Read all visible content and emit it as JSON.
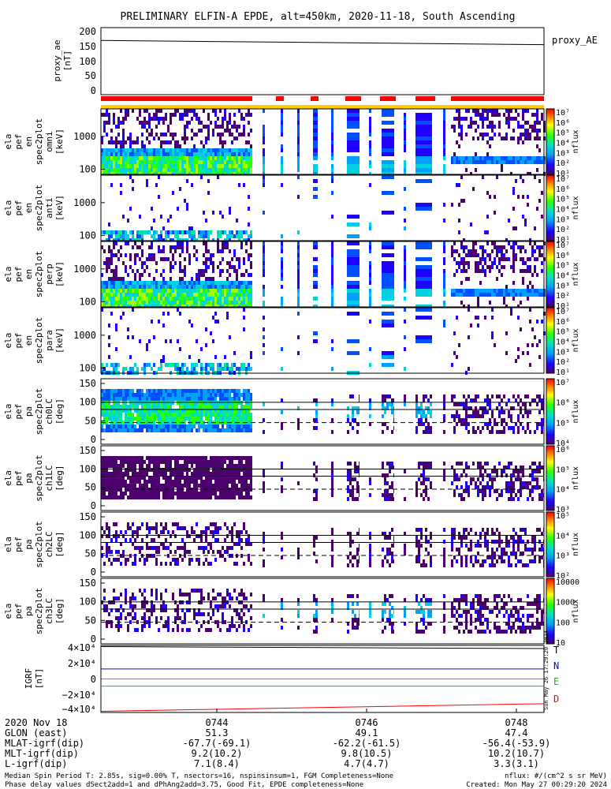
{
  "title": "PRELIMINARY ELFIN-A EPDE, alt=450km, 2020-11-18, South Ascending",
  "colors": {
    "bar_red": "#ff0000",
    "bar_yellow": "#ffcc00",
    "n_blue": "#0000ff",
    "e_green": "#00cc00",
    "d_red": "#ff0000"
  },
  "chart_data": [
    {
      "type": "line",
      "name": "proxy_ae",
      "ylabel": [
        "proxy_ae",
        "[nT]"
      ],
      "legend": "proxy_AE",
      "yticks": [
        "200",
        "150",
        "100",
        "50",
        "0"
      ],
      "ylim": [
        -10,
        210
      ],
      "x": [
        0,
        1
      ],
      "values": [
        168,
        154
      ]
    },
    {
      "type": "heatmap",
      "name": "ela_pef_en_spec2plot_omni",
      "ylabel": [
        "ela",
        "pef",
        "en",
        "spec2plot",
        "omni",
        "[keV]"
      ],
      "yticks": [
        "1000",
        "100"
      ],
      "colorbar_label": "nflux",
      "colorbar_ticks": [
        "10⁷",
        "10⁶",
        "10⁵",
        "10⁴",
        "10³",
        "10²",
        "10¹"
      ]
    },
    {
      "type": "heatmap",
      "name": "ela_pef_en_spec2plot_anti",
      "ylabel": [
        "ela",
        "pef",
        "en",
        "spec2plot",
        "anti",
        "[keV]"
      ],
      "yticks": [
        "1000",
        "100"
      ],
      "colorbar_label": "nflux",
      "colorbar_ticks": [
        "10⁷",
        "10⁶",
        "10⁵",
        "10⁴",
        "10³",
        "10²",
        "10¹"
      ]
    },
    {
      "type": "heatmap",
      "name": "ela_pef_en_spec2plot_perp",
      "ylabel": [
        "ela",
        "pef",
        "en",
        "spec2plot",
        "perp",
        "[keV]"
      ],
      "yticks": [
        "1000",
        "100"
      ],
      "colorbar_label": "nflux",
      "colorbar_ticks": [
        "10⁷",
        "10⁶",
        "10⁵",
        "10⁴",
        "10³",
        "10²",
        "10¹"
      ]
    },
    {
      "type": "heatmap",
      "name": "ela_pef_en_spec2plot_para",
      "ylabel": [
        "ela",
        "pef",
        "en",
        "spec2plot",
        "para",
        "[keV]"
      ],
      "yticks": [
        "1000",
        "100"
      ],
      "colorbar_label": "nflux",
      "colorbar_ticks": [
        "10⁷",
        "10⁶",
        "10⁵",
        "10⁴",
        "10³",
        "10²",
        "10¹"
      ]
    },
    {
      "type": "heatmap",
      "name": "ela_pef_pa_spec2plot_ch0LC",
      "ylabel": [
        "ela",
        "pef",
        "pa",
        "spec2plot",
        "ch0LC",
        "[deg]"
      ],
      "yticks": [
        "150",
        "100",
        "50",
        "0"
      ],
      "colorbar_label": "nflux",
      "colorbar_ticks": [
        "10⁷",
        "10⁶",
        "10⁵",
        "10⁴"
      ]
    },
    {
      "type": "heatmap",
      "name": "ela_pef_pa_spec2plot_ch1LC",
      "ylabel": [
        "ela",
        "pef",
        "pa",
        "spec2plot",
        "ch1LC",
        "[deg]"
      ],
      "yticks": [
        "150",
        "100",
        "50",
        "0"
      ],
      "colorbar_label": "nflux",
      "colorbar_ticks": [
        "10⁶",
        "10⁵",
        "10⁴",
        "10³"
      ]
    },
    {
      "type": "heatmap",
      "name": "ela_pef_pa_spec2plot_ch2LC",
      "ylabel": [
        "ela",
        "pef",
        "pa",
        "spec2plot",
        "ch2LC",
        "[deg]"
      ],
      "yticks": [
        "150",
        "100",
        "50",
        "0"
      ],
      "colorbar_label": "nflux",
      "colorbar_ticks": [
        "10⁵",
        "10⁴",
        "10³",
        "10²"
      ]
    },
    {
      "type": "heatmap",
      "name": "ela_pef_pa_spec2plot_ch3LC",
      "ylabel": [
        "ela",
        "pef",
        "pa",
        "spec2plot",
        "ch3LC",
        "[deg]"
      ],
      "yticks": [
        "150",
        "100",
        "50",
        "0"
      ],
      "colorbar_label": "nflux",
      "colorbar_ticks": [
        "10000",
        "1000",
        "100",
        "10"
      ]
    },
    {
      "type": "line",
      "name": "igrf",
      "ylabel": [
        "IGRF",
        "[nT]"
      ],
      "yticks": [
        "4×10⁴",
        "2×10⁴",
        "0",
        "−2×10⁴",
        "−4×10⁴"
      ],
      "ylim": [
        -42000,
        42000
      ],
      "x": [
        0,
        1
      ],
      "series": [
        {
          "name": "T",
          "values": [
            40500,
            38000
          ]
        },
        {
          "name": "N",
          "values": [
            12500,
            12500
          ]
        },
        {
          "name": "E",
          "values": [
            -9000,
            -9000
          ]
        },
        {
          "name": "D",
          "values": [
            -40500,
            -31000
          ]
        }
      ]
    }
  ],
  "xaxis": {
    "date": "2020 Nov 18",
    "ticks": [
      {
        "label": "0744",
        "glon": "51.3",
        "mlat": "-67.7(-69.1)",
        "mlt": "9.2(10.2)",
        "l": "7.1(8.4)"
      },
      {
        "label": "0746",
        "glon": "49.1",
        "mlat": "-62.2(-61.5)",
        "mlt": "9.8(10.5)",
        "l": "4.7(4.7)"
      },
      {
        "label": "0748",
        "glon": "47.4",
        "mlat": "-56.4(-53.9)",
        "mlt": "10.2(10.7)",
        "l": "3.3(3.1)"
      }
    ],
    "rows": [
      "GLON (east)",
      "MLAT-igrf(dip)",
      "MLT-igrf(dip)",
      "L-igrf(dip)"
    ]
  },
  "footer": {
    "line1": "Median Spin Period T: 2.85s, sig=0.00% T, nsectors=16, nspinsinsum=1, FGM Completeness=None",
    "line2": "Phase delay values dSect2add=1 and dPhAng2add=3.75, Good Fit, EPDE completeness=None",
    "units": "nflux: #/(cm^2 s sr MeV)",
    "created": "Created: Mon May 27 00:29:20 2024",
    "vertical_stamp": "Sun May 26 17:29:20 2024"
  }
}
